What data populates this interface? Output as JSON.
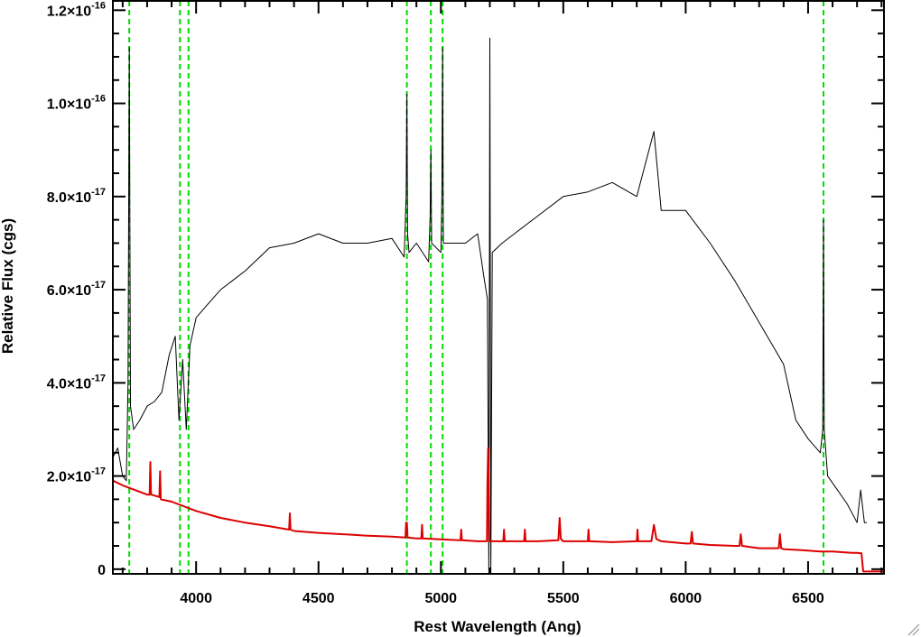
{
  "chart_data": {
    "type": "line",
    "xlabel": "Rest Wavelength (Ang)",
    "ylabel": "Relative Flux (cgs)",
    "xlim": [
      3660,
      6810
    ],
    "ylim": [
      -1e-18,
      1.22e-16
    ],
    "grid": false,
    "legend": "none",
    "x_ticks": [
      {
        "value": 4000,
        "label": "4000"
      },
      {
        "value": 4500,
        "label": "4500"
      },
      {
        "value": 5000,
        "label": "5000"
      },
      {
        "value": 5500,
        "label": "5500"
      },
      {
        "value": 6000,
        "label": "6000"
      },
      {
        "value": 6500,
        "label": "6500"
      }
    ],
    "y_ticks": [
      {
        "value": 0,
        "mantissa": "0",
        "exp": ""
      },
      {
        "value": 2e-17,
        "mantissa": "2.0×10",
        "exp": "-17"
      },
      {
        "value": 4e-17,
        "mantissa": "4.0×10",
        "exp": "-17"
      },
      {
        "value": 6e-17,
        "mantissa": "6.0×10",
        "exp": "-17"
      },
      {
        "value": 8e-17,
        "mantissa": "8.0×10",
        "exp": "-17"
      },
      {
        "value": 1e-16,
        "mantissa": "1.0×10",
        "exp": "-16"
      },
      {
        "value": 1.2e-16,
        "mantissa": "1.2×10",
        "exp": "-16"
      }
    ],
    "vertical_lines": {
      "color": "#00dd00",
      "style": "dashed",
      "x": [
        3727,
        3934,
        3969,
        4861,
        4959,
        5007,
        6563
      ]
    },
    "series": [
      {
        "color": "#000000",
        "x": [
          3660,
          3680,
          3700,
          3715,
          3722,
          3727,
          3732,
          3745,
          3770,
          3800,
          3830,
          3860,
          3890,
          3915,
          3930,
          3945,
          3960,
          3975,
          4000,
          4050,
          4100,
          4200,
          4300,
          4400,
          4500,
          4600,
          4700,
          4800,
          4850,
          4858,
          4861,
          4864,
          4870,
          4900,
          4950,
          4956,
          4959,
          4962,
          5000,
          5004,
          5007,
          5010,
          5050,
          5100,
          5150,
          5175,
          5190,
          5196,
          5200,
          5204,
          5210,
          5250,
          5300,
          5400,
          5500,
          5600,
          5700,
          5800,
          5870,
          5900,
          6000,
          6100,
          6200,
          6300,
          6400,
          6450,
          6500,
          6550,
          6560,
          6563,
          6566,
          6580,
          6620,
          6660,
          6700,
          6715,
          6730,
          6740
        ],
        "y": [
          2.4e-17,
          2.6e-17,
          2e-17,
          1.9e-17,
          4e-17,
          1.12e-16,
          3.5e-17,
          3e-17,
          3.2e-17,
          3.5e-17,
          3.6e-17,
          3.8e-17,
          4.6e-17,
          5e-17,
          3.2e-17,
          4.5e-17,
          3e-17,
          4.8e-17,
          5.4e-17,
          5.7e-17,
          6e-17,
          6.4e-17,
          6.9e-17,
          7e-17,
          7.2e-17,
          7e-17,
          7e-17,
          7.1e-17,
          6.7e-17,
          8e-17,
          1.02e-16,
          7.2e-17,
          6.8e-17,
          7e-17,
          6.6e-17,
          7.6e-17,
          9e-17,
          7e-17,
          6.8e-17,
          8e-17,
          1.12e-16,
          7e-17,
          7e-17,
          7e-17,
          7.2e-17,
          6.3e-17,
          5.8e-17,
          -1e-18,
          1.14e-16,
          -1e-18,
          6.8e-17,
          7e-17,
          7.2e-17,
          7.6e-17,
          8e-17,
          8.1e-17,
          8.3e-17,
          8e-17,
          9.4e-17,
          7.7e-17,
          7.7e-17,
          7e-17,
          6.2e-17,
          5.3e-17,
          4.4e-17,
          3.2e-17,
          2.8e-17,
          2.5e-17,
          3e-17,
          7.5e-17,
          3e-17,
          2e-17,
          1.7e-17,
          1.4e-17,
          1e-17,
          1.7e-17,
          1e-17,
          1e-17
        ]
      },
      {
        "color": "#dd0000",
        "x": [
          3660,
          3700,
          3750,
          3800,
          3810,
          3813,
          3816,
          3850,
          3853,
          3856,
          3900,
          4000,
          4100,
          4200,
          4300,
          4380,
          4383,
          4386,
          4400,
          4500,
          4600,
          4700,
          4800,
          4855,
          4858,
          4861,
          4864,
          4900,
          4920,
          4923,
          4926,
          5000,
          5080,
          5083,
          5086,
          5150,
          5188,
          5190,
          5193,
          5196,
          5198,
          5200,
          5240,
          5255,
          5258,
          5261,
          5280,
          5340,
          5343,
          5346,
          5400,
          5480,
          5485,
          5490,
          5500,
          5600,
          5603,
          5606,
          5700,
          5800,
          5803,
          5806,
          5860,
          5870,
          5880,
          5900,
          6000,
          6020,
          6025,
          6030,
          6100,
          6200,
          6220,
          6225,
          6230,
          6300,
          6380,
          6385,
          6390,
          6400,
          6500,
          6550,
          6600,
          6680,
          6700,
          6718,
          6725,
          6735,
          6760,
          6810
        ],
        "y": [
          1.9e-17,
          1.8e-17,
          1.7e-17,
          1.6e-17,
          1.6e-17,
          2.3e-17,
          1.6e-17,
          1.55e-17,
          2.1e-17,
          1.5e-17,
          1.45e-17,
          1.25e-17,
          1.1e-17,
          1e-17,
          9.2e-18,
          8.5e-18,
          1.2e-17,
          8.5e-18,
          8.2e-18,
          7.8e-18,
          7.5e-18,
          7.2e-18,
          7e-18,
          6.8e-18,
          1e-17,
          1e-17,
          6.8e-18,
          6.6e-18,
          6.6e-18,
          9.5e-18,
          6.6e-18,
          6.4e-18,
          6.2e-18,
          8.5e-18,
          6.2e-18,
          6e-18,
          6e-18,
          1.8e-17,
          2.6e-17,
          1.6e-17,
          6e-18,
          6e-18,
          6e-18,
          6e-18,
          8.5e-18,
          6e-18,
          6e-18,
          6e-18,
          8.5e-18,
          6e-18,
          6e-18,
          6.2e-18,
          1.1e-17,
          6.5e-18,
          6e-18,
          6e-18,
          8.5e-18,
          6e-18,
          5.8e-18,
          6e-18,
          8.5e-18,
          6e-18,
          6e-18,
          9.5e-18,
          6.5e-18,
          6e-18,
          5.5e-18,
          5.5e-18,
          8e-18,
          5.5e-18,
          5.2e-18,
          5e-18,
          5e-18,
          7.5e-18,
          5e-18,
          4.5e-18,
          4.5e-18,
          7.5e-18,
          4.5e-18,
          4.3e-18,
          4e-18,
          3.8e-18,
          3.8e-18,
          3.5e-18,
          3.5e-18,
          3.4e-18,
          -5e-19,
          -5e-19,
          -5e-19,
          -5e-19
        ]
      }
    ]
  }
}
